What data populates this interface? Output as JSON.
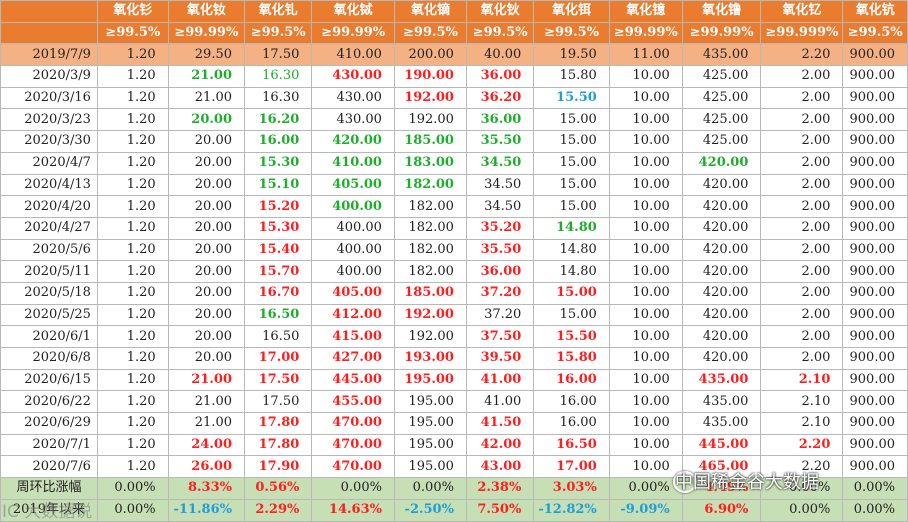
{
  "header": {
    "names": [
      "氧化钐",
      "氧化钕",
      "氧化钆",
      "氧化铽",
      "氧化镝",
      "氧化钬",
      "氧化铒",
      "氧化镱",
      "氧化镥",
      "氧化钇",
      "氧化钪"
    ],
    "purities": [
      "≥99.5%",
      "≥99.99%",
      "≥99.5%",
      "≥99.99%",
      "≥99.5%",
      "≥99.5%",
      "≥99.5%",
      "≥99.99%",
      "≥99.99%",
      "≥99.999%",
      "≥99.5%"
    ]
  },
  "rows": [
    {
      "date": "2019/7/9",
      "cells": [
        [
          "1.20",
          "bk"
        ],
        [
          "29.50",
          "bk"
        ],
        [
          "17.50",
          "bk"
        ],
        [
          "410.00",
          "bk"
        ],
        [
          "200.00",
          "bk"
        ],
        [
          "40.00",
          "bk"
        ],
        [
          "19.50",
          "bk"
        ],
        [
          "11.00",
          "bk"
        ],
        [
          "435.00",
          "bk"
        ],
        [
          "2.20",
          "bk"
        ],
        [
          "900.00",
          "bk"
        ]
      ]
    },
    {
      "date": "2020/3/9",
      "cells": [
        [
          "1.20",
          "bk"
        ],
        [
          "21.00",
          "down"
        ],
        [
          "16.30",
          "gr"
        ],
        [
          "430.00",
          "up"
        ],
        [
          "190.00",
          "up"
        ],
        [
          "36.00",
          "up"
        ],
        [
          "15.80",
          "bk"
        ],
        [
          "10.00",
          "bk"
        ],
        [
          "425.00",
          "bk"
        ],
        [
          "2.00",
          "bk"
        ],
        [
          "900.00",
          "bk"
        ]
      ]
    },
    {
      "date": "2020/3/16",
      "cells": [
        [
          "1.20",
          "bk"
        ],
        [
          "21.00",
          "bk"
        ],
        [
          "16.30",
          "bk"
        ],
        [
          "430.00",
          "bk"
        ],
        [
          "192.00",
          "up"
        ],
        [
          "36.20",
          "up"
        ],
        [
          "15.50",
          "blue"
        ],
        [
          "10.00",
          "bk"
        ],
        [
          "425.00",
          "bk"
        ],
        [
          "2.00",
          "bk"
        ],
        [
          "900.00",
          "bk"
        ]
      ]
    },
    {
      "date": "2020/3/23",
      "cells": [
        [
          "1.20",
          "bk"
        ],
        [
          "20.00",
          "down"
        ],
        [
          "16.20",
          "down"
        ],
        [
          "430.00",
          "bk"
        ],
        [
          "192.00",
          "bk"
        ],
        [
          "36.00",
          "down"
        ],
        [
          "15.00",
          "bk"
        ],
        [
          "10.00",
          "bk"
        ],
        [
          "425.00",
          "bk"
        ],
        [
          "2.00",
          "bk"
        ],
        [
          "900.00",
          "bk"
        ]
      ]
    },
    {
      "date": "2020/3/30",
      "cells": [
        [
          "1.20",
          "bk"
        ],
        [
          "20.00",
          "bk"
        ],
        [
          "16.00",
          "down"
        ],
        [
          "420.00",
          "down"
        ],
        [
          "185.00",
          "down"
        ],
        [
          "35.50",
          "down"
        ],
        [
          "15.00",
          "bk"
        ],
        [
          "10.00",
          "bk"
        ],
        [
          "425.00",
          "bk"
        ],
        [
          "2.00",
          "bk"
        ],
        [
          "900.00",
          "bk"
        ]
      ]
    },
    {
      "date": "2020/4/7",
      "cells": [
        [
          "1.20",
          "bk"
        ],
        [
          "20.00",
          "bk"
        ],
        [
          "15.30",
          "down"
        ],
        [
          "410.00",
          "down"
        ],
        [
          "183.00",
          "down"
        ],
        [
          "34.50",
          "down"
        ],
        [
          "15.00",
          "bk"
        ],
        [
          "10.00",
          "bk"
        ],
        [
          "420.00",
          "down"
        ],
        [
          "2.00",
          "bk"
        ],
        [
          "900.00",
          "bk"
        ]
      ]
    },
    {
      "date": "2020/4/13",
      "cells": [
        [
          "1.20",
          "bk"
        ],
        [
          "20.00",
          "bk"
        ],
        [
          "15.10",
          "down"
        ],
        [
          "405.00",
          "down"
        ],
        [
          "182.00",
          "down"
        ],
        [
          "34.50",
          "bk"
        ],
        [
          "15.00",
          "bk"
        ],
        [
          "10.00",
          "bk"
        ],
        [
          "420.00",
          "bk"
        ],
        [
          "2.00",
          "bk"
        ],
        [
          "900.00",
          "bk"
        ]
      ]
    },
    {
      "date": "2020/4/20",
      "cells": [
        [
          "1.20",
          "bk"
        ],
        [
          "20.00",
          "bk"
        ],
        [
          "15.20",
          "up"
        ],
        [
          "400.00",
          "down"
        ],
        [
          "182.00",
          "bk"
        ],
        [
          "34.50",
          "bk"
        ],
        [
          "15.00",
          "bk"
        ],
        [
          "10.00",
          "bk"
        ],
        [
          "420.00",
          "bk"
        ],
        [
          "2.00",
          "bk"
        ],
        [
          "900.00",
          "bk"
        ]
      ]
    },
    {
      "date": "2020/4/27",
      "cells": [
        [
          "1.20",
          "bk"
        ],
        [
          "20.00",
          "bk"
        ],
        [
          "15.30",
          "up"
        ],
        [
          "400.00",
          "bk"
        ],
        [
          "182.00",
          "bk"
        ],
        [
          "35.20",
          "up"
        ],
        [
          "14.80",
          "down"
        ],
        [
          "10.00",
          "bk"
        ],
        [
          "420.00",
          "bk"
        ],
        [
          "2.00",
          "bk"
        ],
        [
          "900.00",
          "bk"
        ]
      ]
    },
    {
      "date": "2020/5/6",
      "cells": [
        [
          "1.20",
          "bk"
        ],
        [
          "20.00",
          "bk"
        ],
        [
          "15.40",
          "up"
        ],
        [
          "400.00",
          "bk"
        ],
        [
          "182.00",
          "bk"
        ],
        [
          "35.50",
          "up"
        ],
        [
          "14.80",
          "bk"
        ],
        [
          "10.00",
          "bk"
        ],
        [
          "420.00",
          "bk"
        ],
        [
          "2.00",
          "bk"
        ],
        [
          "900.00",
          "bk"
        ]
      ]
    },
    {
      "date": "2020/5/11",
      "cells": [
        [
          "1.20",
          "bk"
        ],
        [
          "20.00",
          "bk"
        ],
        [
          "15.70",
          "up"
        ],
        [
          "400.00",
          "bk"
        ],
        [
          "182.00",
          "bk"
        ],
        [
          "36.00",
          "up"
        ],
        [
          "14.80",
          "bk"
        ],
        [
          "10.00",
          "bk"
        ],
        [
          "420.00",
          "bk"
        ],
        [
          "2.00",
          "bk"
        ],
        [
          "900.00",
          "bk"
        ]
      ]
    },
    {
      "date": "2020/5/18",
      "cells": [
        [
          "1.20",
          "bk"
        ],
        [
          "20.00",
          "bk"
        ],
        [
          "16.70",
          "up"
        ],
        [
          "405.00",
          "up"
        ],
        [
          "185.00",
          "up"
        ],
        [
          "37.20",
          "up"
        ],
        [
          "15.00",
          "up"
        ],
        [
          "10.00",
          "bk"
        ],
        [
          "420.00",
          "bk"
        ],
        [
          "2.00",
          "bk"
        ],
        [
          "900.00",
          "bk"
        ]
      ]
    },
    {
      "date": "2020/5/25",
      "cells": [
        [
          "1.20",
          "bk"
        ],
        [
          "20.00",
          "bk"
        ],
        [
          "16.50",
          "down"
        ],
        [
          "412.00",
          "up"
        ],
        [
          "192.00",
          "up"
        ],
        [
          "37.20",
          "bk"
        ],
        [
          "15.00",
          "bk"
        ],
        [
          "10.00",
          "bk"
        ],
        [
          "420.00",
          "bk"
        ],
        [
          "2.00",
          "bk"
        ],
        [
          "900.00",
          "bk"
        ]
      ]
    },
    {
      "date": "2020/6/1",
      "cells": [
        [
          "1.20",
          "bk"
        ],
        [
          "20.00",
          "bk"
        ],
        [
          "16.50",
          "bk"
        ],
        [
          "415.00",
          "up"
        ],
        [
          "192.00",
          "bk"
        ],
        [
          "37.50",
          "up"
        ],
        [
          "15.50",
          "up"
        ],
        [
          "10.00",
          "bk"
        ],
        [
          "420.00",
          "bk"
        ],
        [
          "2.00",
          "bk"
        ],
        [
          "900.00",
          "bk"
        ]
      ]
    },
    {
      "date": "2020/6/8",
      "cells": [
        [
          "1.20",
          "bk"
        ],
        [
          "20.00",
          "bk"
        ],
        [
          "17.00",
          "up"
        ],
        [
          "427.00",
          "up"
        ],
        [
          "193.00",
          "up"
        ],
        [
          "39.50",
          "up"
        ],
        [
          "15.80",
          "up"
        ],
        [
          "10.00",
          "bk"
        ],
        [
          "420.00",
          "bk"
        ],
        [
          "2.00",
          "bk"
        ],
        [
          "900.00",
          "bk"
        ]
      ]
    },
    {
      "date": "2020/6/15",
      "cells": [
        [
          "1.20",
          "bk"
        ],
        [
          "21.00",
          "up"
        ],
        [
          "17.50",
          "up"
        ],
        [
          "445.00",
          "up"
        ],
        [
          "195.00",
          "up"
        ],
        [
          "41.00",
          "up"
        ],
        [
          "16.00",
          "up"
        ],
        [
          "10.00",
          "bk"
        ],
        [
          "435.00",
          "up"
        ],
        [
          "2.10",
          "up"
        ],
        [
          "900.00",
          "bk"
        ]
      ]
    },
    {
      "date": "2020/6/22",
      "cells": [
        [
          "1.20",
          "bk"
        ],
        [
          "21.00",
          "bk"
        ],
        [
          "17.50",
          "bk"
        ],
        [
          "455.00",
          "up"
        ],
        [
          "195.00",
          "bk"
        ],
        [
          "41.00",
          "bk"
        ],
        [
          "16.00",
          "bk"
        ],
        [
          "10.00",
          "bk"
        ],
        [
          "435.00",
          "bk"
        ],
        [
          "2.10",
          "bk"
        ],
        [
          "900.00",
          "bk"
        ]
      ]
    },
    {
      "date": "2020/6/29",
      "cells": [
        [
          "1.20",
          "bk"
        ],
        [
          "21.00",
          "bk"
        ],
        [
          "17.80",
          "up"
        ],
        [
          "470.00",
          "up"
        ],
        [
          "195.00",
          "bk"
        ],
        [
          "41.50",
          "up"
        ],
        [
          "16.00",
          "bk"
        ],
        [
          "10.00",
          "bk"
        ],
        [
          "435.00",
          "bk"
        ],
        [
          "2.10",
          "bk"
        ],
        [
          "900.00",
          "bk"
        ]
      ]
    },
    {
      "date": "2020/7/1",
      "cells": [
        [
          "1.20",
          "bk"
        ],
        [
          "24.00",
          "up"
        ],
        [
          "17.80",
          "up"
        ],
        [
          "470.00",
          "up"
        ],
        [
          "195.00",
          "bk"
        ],
        [
          "42.00",
          "up"
        ],
        [
          "16.50",
          "up"
        ],
        [
          "10.00",
          "bk"
        ],
        [
          "445.00",
          "up"
        ],
        [
          "2.20",
          "up"
        ],
        [
          "900.00",
          "bk"
        ]
      ]
    },
    {
      "date": "2020/7/6",
      "cells": [
        [
          "1.20",
          "bk"
        ],
        [
          "26.00",
          "up"
        ],
        [
          "17.90",
          "up"
        ],
        [
          "470.00",
          "up"
        ],
        [
          "195.00",
          "bk"
        ],
        [
          "43.00",
          "up"
        ],
        [
          "17.00",
          "up"
        ],
        [
          "10.00",
          "bk"
        ],
        [
          "465.00",
          "up"
        ],
        [
          "2.20",
          "bk"
        ],
        [
          "900.00",
          "bk"
        ]
      ]
    }
  ],
  "summary": [
    {
      "label": "周环比涨幅",
      "cells": [
        [
          "0.00%",
          "bk"
        ],
        [
          "8.33%",
          "up"
        ],
        [
          "0.56%",
          "up"
        ],
        [
          "0.00%",
          "bk"
        ],
        [
          "0.00%",
          "bk"
        ],
        [
          "2.38%",
          "up"
        ],
        [
          "3.03%",
          "up"
        ],
        [
          "0.00%",
          "bk"
        ],
        [
          "4.49%",
          "up"
        ],
        [
          "0.00%",
          "bk"
        ],
        [
          "0.00%",
          "bk"
        ]
      ]
    },
    {
      "label": "2019年以来",
      "cells": [
        [
          "0.00%",
          "bk"
        ],
        [
          "-11.86%",
          "blue"
        ],
        [
          "2.29%",
          "up"
        ],
        [
          "14.63%",
          "up"
        ],
        [
          "-2.50%",
          "blue"
        ],
        [
          "7.50%",
          "up"
        ],
        [
          "-12.82%",
          "blue"
        ],
        [
          "-9.09%",
          "blue"
        ],
        [
          "6.90%",
          "up"
        ],
        [
          "0.00%",
          "bk"
        ],
        [
          "0.00%",
          "bk"
        ]
      ]
    }
  ],
  "watermarks": {
    "left": "IC 大数据说",
    "right": "中国稀金谷大数据"
  }
}
